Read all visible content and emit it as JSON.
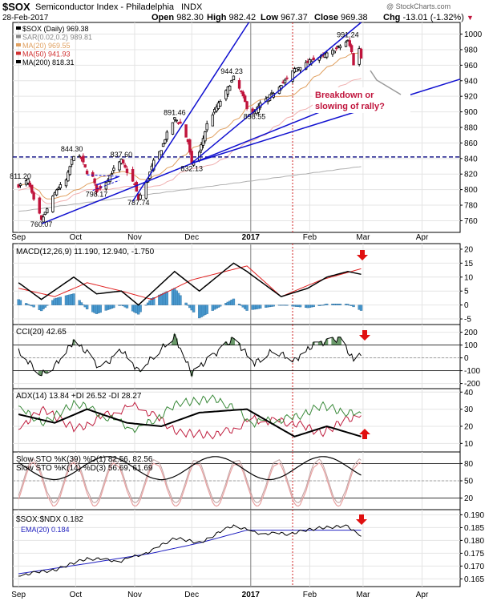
{
  "header": {
    "symbol": "$SOX",
    "name": "Semiconductor Index - Philadelphia",
    "exchange": "INDX",
    "date": "28-Feb-2017",
    "open_label": "Open",
    "open": "982.30",
    "high_label": "High",
    "high": "982.42",
    "low_label": "Low",
    "low": "967.37",
    "close_label": "Close",
    "close": "969.38",
    "chg_label": "Chg",
    "chg": "-13.01 (-1.32%)",
    "watermark": "@ StockCharts.com"
  },
  "colors": {
    "up": "#000000",
    "down": "#c0143c",
    "trend": "#1010d0",
    "ma20": "#e0a060",
    "ma50": "#f0b0b0",
    "ma200": "#b0b0b0",
    "macd_signal": "#e02020",
    "hist": "#4a9ad0",
    "cci_fill": "#6a9a6a",
    "plus_di": "#3a8a3a",
    "minus_di": "#c02040",
    "marker": "#e01010",
    "annotation_box": "#c0143c",
    "ratio_ema": "#2020c0"
  },
  "chart_data": [
    {
      "type": "candlestick",
      "title": "$SOX (Daily) 969.38",
      "legend": [
        {
          "label": "$SOX (Daily)",
          "value": "969.38"
        },
        {
          "label": "SAR(0.02,0.2)",
          "value": "989.81"
        },
        {
          "label": "MA(20)",
          "value": "969.55"
        },
        {
          "label": "MA(50)",
          "value": "941.93"
        },
        {
          "label": "MA(200)",
          "value": "818.31"
        }
      ],
      "ylim": [
        745,
        1015
      ],
      "yticks": [
        "1000",
        "980",
        "960",
        "940",
        "920",
        "900",
        "880",
        "860",
        "840",
        "820",
        "800",
        "780",
        "760"
      ],
      "xticks": [
        "Sep",
        "Oct",
        "Nov",
        "Dec",
        "2017",
        "Feb",
        "Mar",
        "Apr"
      ],
      "price_points": [
        [
          "Sep 1",
          805
        ],
        [
          "Sep 6",
          812
        ],
        [
          "Sep 9",
          786
        ],
        [
          "Sep 12",
          768
        ],
        [
          "Sep 13",
          760.07
        ],
        [
          "Sep 16",
          775
        ],
        [
          "Sep 21",
          800
        ],
        [
          "Sep 26",
          812
        ],
        [
          "Sep 29",
          838
        ],
        [
          "Sep 30",
          844.3
        ],
        [
          "Oct 4",
          840
        ],
        [
          "Oct 7",
          822
        ],
        [
          "Oct 10",
          816
        ],
        [
          "Oct 12",
          798.17
        ],
        [
          "Oct 17",
          810
        ],
        [
          "Oct 21",
          826
        ],
        [
          "Oct 25",
          837.6
        ],
        [
          "Oct 28",
          823
        ],
        [
          "Nov 1",
          806
        ],
        [
          "Nov 3",
          787.74
        ],
        [
          "Nov 7",
          808
        ],
        [
          "Nov 11",
          836
        ],
        [
          "Nov 15",
          852
        ],
        [
          "Nov 18",
          872
        ],
        [
          "Nov 22",
          891.46
        ],
        [
          "Nov 25",
          885
        ],
        [
          "Nov 29",
          862
        ],
        [
          "Dec 1",
          832.13
        ],
        [
          "Dec 5",
          848
        ],
        [
          "Dec 9",
          884
        ],
        [
          "Dec 14",
          906
        ],
        [
          "Dec 19",
          926
        ],
        [
          "Dec 23",
          944.23
        ],
        [
          "Dec 27",
          925
        ],
        [
          "Dec 30",
          906
        ],
        [
          "Jan 3",
          898.55
        ],
        [
          "Jan 6",
          910
        ],
        [
          "Jan 10",
          918
        ],
        [
          "Jan 13",
          925
        ],
        [
          "Jan 17",
          936
        ],
        [
          "Jan 20",
          942
        ],
        [
          "Jan 24",
          955
        ],
        [
          "Jan 30",
          962
        ],
        [
          "Feb 3",
          968
        ],
        [
          "Feb 8",
          972
        ],
        [
          "Feb 13",
          978
        ],
        [
          "Feb 17",
          985
        ],
        [
          "Feb 21",
          991.24
        ],
        [
          "Feb 23",
          978
        ],
        [
          "Feb 24",
          960
        ],
        [
          "Feb 27",
          982
        ],
        [
          "Feb 28",
          969.38
        ]
      ],
      "price_labels": [
        "811.20",
        "760.07",
        "844.30",
        "798.17",
        "837.60",
        "787.74",
        "891.46",
        "832.13",
        "944.23",
        "898.55",
        "991.24"
      ],
      "horizontal_line": 842,
      "annotation": "Breakdown or slowing of rally?"
    },
    {
      "type": "line",
      "title": "MACD(12,26,9) 11.190, 12.940, -1.750",
      "legend": [
        {
          "label": "MACD(12,26,9)",
          "value": "11.190"
        },
        {
          "label": "signal",
          "value": "12.940"
        },
        {
          "label": "histogram",
          "value": "-1.750"
        }
      ],
      "ylim": [
        -7,
        22
      ],
      "yticks": [
        "20",
        "15",
        "10",
        "5",
        "0",
        "-5"
      ]
    },
    {
      "type": "line",
      "title": "CCI(20) 42.65",
      "legend": [
        {
          "label": "CCI(20)",
          "value": "42.65"
        }
      ],
      "ylim": [
        -240,
        260
      ],
      "yticks": [
        "200",
        "100",
        "0",
        "-100",
        "-200"
      ]
    },
    {
      "type": "line",
      "title": "ADX(14) 13.84 +DI 26.52 -DI 28.27",
      "legend": [
        {
          "label": "ADX(14)",
          "value": "13.84"
        },
        {
          "label": "+DI",
          "value": "26.52"
        },
        {
          "label": "-DI",
          "value": "28.27"
        }
      ],
      "ylim": [
        5,
        42
      ],
      "yticks": [
        "40",
        "30",
        "20",
        "10"
      ]
    },
    {
      "type": "line",
      "title": "Slow STO %K(39) %D(1) 82.56, 82.56 / Slow STO %K(14) %D(3) 56.69, 61.69",
      "legend": [
        {
          "label": "Slow STO %K(39) %D(1)",
          "value": "82.56, 82.56"
        },
        {
          "label": "Slow STO %K(14) %D(3)",
          "value": "56.69, 61.69"
        }
      ],
      "ylim": [
        0,
        100
      ],
      "yticks": [
        "80",
        "50",
        "20"
      ]
    },
    {
      "type": "line",
      "title": "$SOX:$NDX 0.182",
      "legend": [
        {
          "label": "$SOX:$NDX",
          "value": "0.182"
        },
        {
          "label": "EMA(20)",
          "value": "0.184"
        }
      ],
      "ylim": [
        0.162,
        0.192
      ],
      "yticks": [
        "0.190",
        "0.185",
        "0.180",
        "0.175",
        "0.170",
        "0.165"
      ],
      "xticks": [
        "Sep",
        "Oct",
        "Nov",
        "Dec",
        "2017",
        "Feb",
        "Mar",
        "Apr"
      ]
    }
  ]
}
